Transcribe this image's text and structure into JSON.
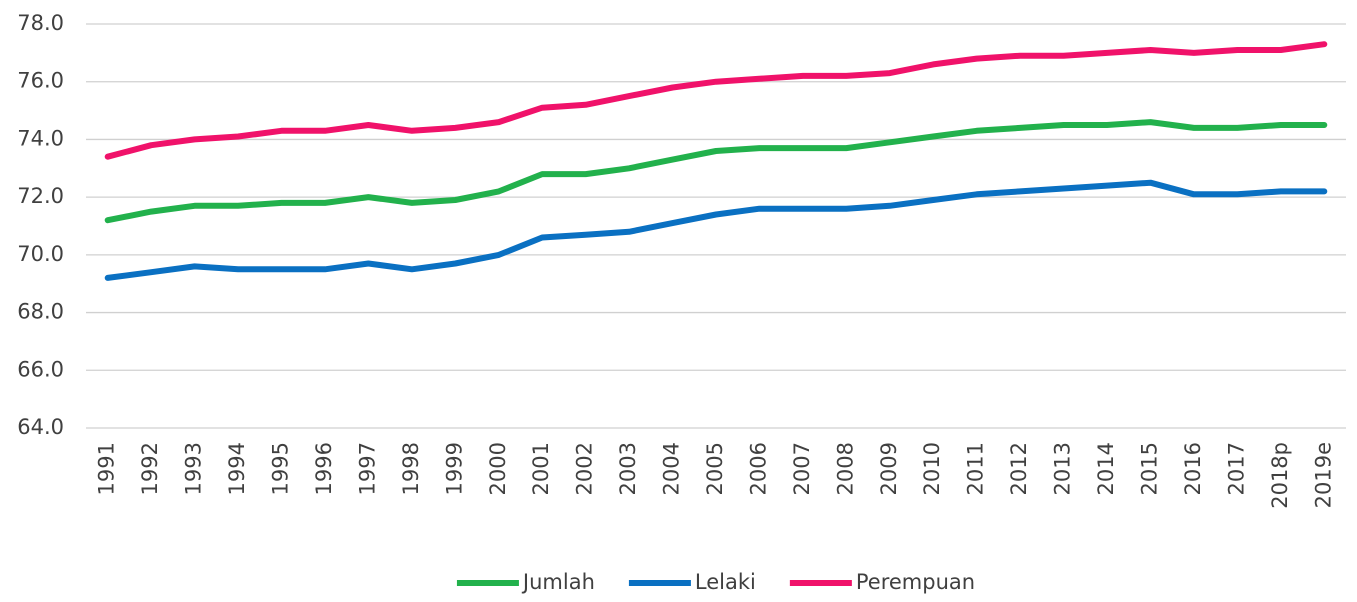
{
  "chart_data": {
    "type": "line",
    "categories": [
      "1991",
      "1992",
      "1993",
      "1994",
      "1995",
      "1996",
      "1997",
      "1998",
      "1999",
      "2000",
      "2001",
      "2002",
      "2003",
      "2004",
      "2005",
      "2006",
      "2007",
      "2008",
      "2009",
      "2010",
      "2011",
      "2012",
      "2013",
      "2014",
      "2015",
      "2016",
      "2017",
      "2018p",
      "2019e"
    ],
    "series": [
      {
        "name": "Jumlah",
        "color": "#22b14c",
        "values": [
          71.2,
          71.5,
          71.7,
          71.7,
          71.8,
          71.8,
          72.0,
          71.8,
          71.9,
          72.2,
          72.8,
          72.8,
          73.0,
          73.3,
          73.6,
          73.7,
          73.7,
          73.7,
          73.9,
          74.1,
          74.3,
          74.4,
          74.5,
          74.5,
          74.6,
          74.4,
          74.4,
          74.5,
          74.5
        ]
      },
      {
        "name": "Lelaki",
        "color": "#0a70c2",
        "values": [
          69.2,
          69.4,
          69.6,
          69.5,
          69.5,
          69.5,
          69.7,
          69.5,
          69.7,
          70.0,
          70.6,
          70.7,
          70.8,
          71.1,
          71.4,
          71.6,
          71.6,
          71.6,
          71.7,
          71.9,
          72.1,
          72.2,
          72.3,
          72.4,
          72.5,
          72.1,
          72.1,
          72.2,
          72.2
        ]
      },
      {
        "name": "Perempuan",
        "color": "#f0126a",
        "values": [
          73.4,
          73.8,
          74.0,
          74.1,
          74.3,
          74.3,
          74.5,
          74.3,
          74.4,
          74.6,
          75.1,
          75.2,
          75.5,
          75.8,
          76.0,
          76.1,
          76.2,
          76.2,
          76.3,
          76.6,
          76.8,
          76.9,
          76.9,
          77.0,
          77.1,
          77.0,
          77.1,
          77.1,
          77.3
        ]
      }
    ],
    "ylim": [
      64,
      78
    ],
    "yticks": [
      {
        "value": 64,
        "label": "64.0"
      },
      {
        "value": 66,
        "label": "66.0"
      },
      {
        "value": 68,
        "label": "68.0"
      },
      {
        "value": 70,
        "label": "70.0"
      },
      {
        "value": 72,
        "label": "72.0"
      },
      {
        "value": 74,
        "label": "74.0"
      },
      {
        "value": 76,
        "label": "76.0"
      },
      {
        "value": 78,
        "label": "78.0"
      }
    ],
    "grid": true,
    "legend": "bottom"
  }
}
